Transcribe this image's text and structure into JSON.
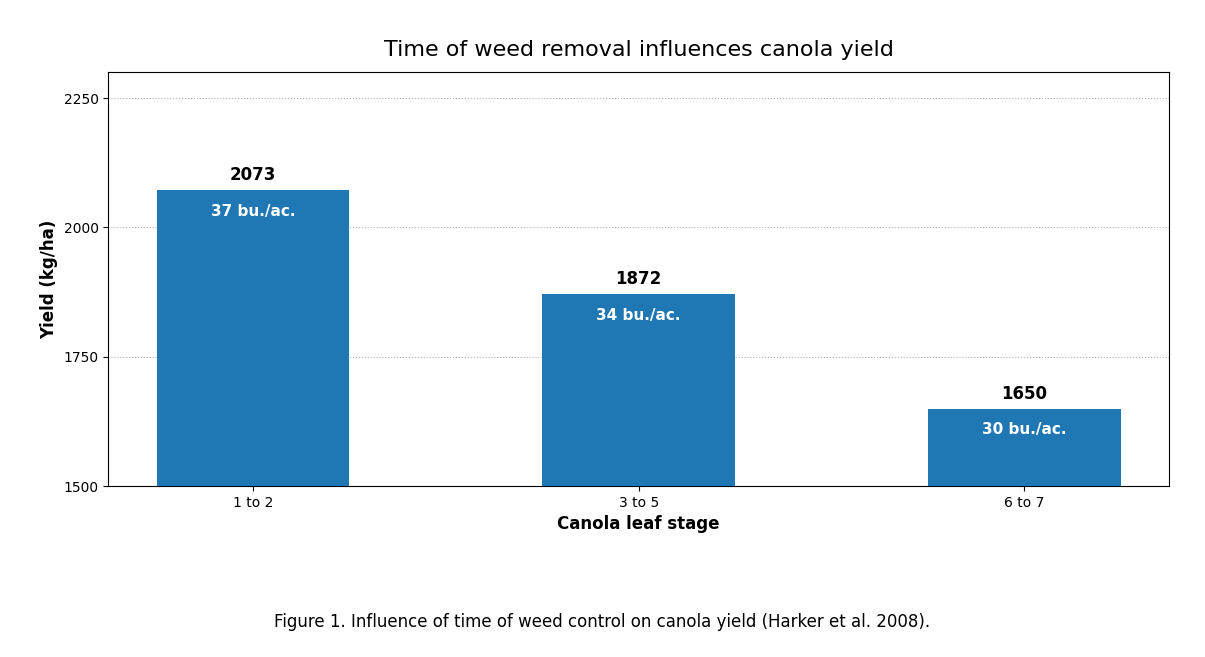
{
  "chart_data": {
    "type": "bar",
    "title": "Time of weed removal influences canola yield",
    "categories": [
      "1 to 2",
      "3 to 5",
      "6 to 7"
    ],
    "values": [
      2073,
      1872,
      1650
    ],
    "inner_labels": [
      "37 bu./ac.",
      "34 bu./ac.",
      "30 bu./ac."
    ],
    "xlabel": "Canola leaf stage",
    "ylabel": "Yield (kg/ha)",
    "ylim": [
      1500,
      2300
    ],
    "yticks": [
      1500,
      1750,
      2000,
      2250
    ],
    "grid": true,
    "data_labels": true,
    "caption": "Figure 1. Influence of time of weed control on canola yield (Harker et al. 2008)."
  }
}
